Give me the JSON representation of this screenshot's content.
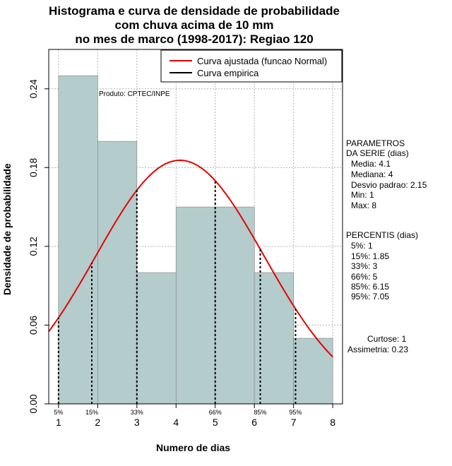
{
  "title": {
    "line1": "Histograma e curva de densidade de probabilidade",
    "line2": "com chuva acima de 10 mm",
    "line3": "no mes de marco (1998-2017): Regiao 120"
  },
  "product_label": "Produto: CPTEC/INPE",
  "legend": {
    "fitted": "Curva ajustada (funcao Normal)",
    "empirical": "Curva empirica"
  },
  "parameters": {
    "heading1": "PARAMETROS",
    "heading2": "DA SERIE (dias)",
    "items": [
      "Media: 4.1",
      "Mediana: 4",
      "Desvio padrao: 2.15",
      "Min: 1",
      "Max: 8"
    ]
  },
  "percentiles": {
    "heading": "PERCENTIS (dias)",
    "items": [
      "5%: 1",
      "15%: 1.85",
      "33%: 3",
      "66%: 5",
      "85%: 6.15",
      "95%: 7.05"
    ]
  },
  "shape": {
    "kurtosis": "Curtose: 1",
    "skewness": "Assimetria: 0.23"
  },
  "chart_data": {
    "type": "bar",
    "xlabel": "Numero de dias",
    "ylabel": "Densidade de probabilidade",
    "xlim": [
      0.75,
      8.25
    ],
    "ylim": [
      0,
      0.27
    ],
    "x_ticks": [
      1,
      2,
      3,
      4,
      5,
      6,
      7,
      8
    ],
    "y_ticks": [
      0.0,
      0.06,
      0.12,
      0.18,
      0.24
    ],
    "y_tick_labels": [
      "0.00",
      "0.06",
      "0.12",
      "0.18",
      "0.24"
    ],
    "bins": [
      {
        "x0": 1,
        "x1": 2,
        "density": 0.25
      },
      {
        "x0": 2,
        "x1": 3,
        "density": 0.2
      },
      {
        "x0": 3,
        "x1": 4,
        "density": 0.1
      },
      {
        "x0": 4,
        "x1": 5,
        "density": 0.15
      },
      {
        "x0": 5,
        "x1": 6,
        "density": 0.15
      },
      {
        "x0": 6,
        "x1": 7,
        "density": 0.1
      },
      {
        "x0": 7,
        "x1": 8,
        "density": 0.05
      }
    ],
    "normal_fit": {
      "mean": 4.1,
      "sd": 2.15
    },
    "percentile_lines": [
      {
        "label": "5%",
        "x": 1
      },
      {
        "label": "15%",
        "x": 1.85
      },
      {
        "label": "33%",
        "x": 3
      },
      {
        "label": "66%",
        "x": 5
      },
      {
        "label": "85%",
        "x": 6.15
      },
      {
        "label": "95%",
        "x": 7.05
      }
    ],
    "grid": true,
    "legend_position": "top-right",
    "colors": {
      "bars": "#b4cccc",
      "fit": "#e60000",
      "grid": "#b3b3b3"
    }
  }
}
